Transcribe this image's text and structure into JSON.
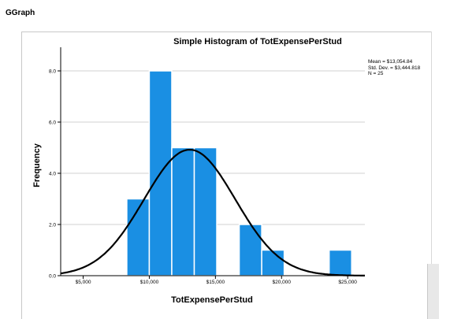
{
  "window": {
    "title": "GGraph"
  },
  "chart_data": {
    "type": "bar",
    "title": "Simple Histogram of TotExpensePerStud",
    "xlabel": "TotExpensePerStud",
    "ylabel": "Frequency",
    "bin_width": 1700,
    "bins": [
      {
        "start": 8300,
        "value": 3
      },
      {
        "start": 10000,
        "value": 8
      },
      {
        "start": 11700,
        "value": 5
      },
      {
        "start": 13400,
        "value": 5
      },
      {
        "start": 15100,
        "value": 0
      },
      {
        "start": 16800,
        "value": 2
      },
      {
        "start": 18500,
        "value": 1
      },
      {
        "start": 20200,
        "value": 0
      },
      {
        "start": 21900,
        "value": 0
      },
      {
        "start": 23600,
        "value": 1
      }
    ],
    "xlim": [
      3300,
      26300
    ],
    "ylim": [
      0,
      9
    ],
    "x_ticks": [
      5000,
      10000,
      15000,
      20000,
      25000
    ],
    "x_tick_labels": [
      "$5,000",
      "$10,000",
      "$15,000",
      "$20,000",
      "$25,000"
    ],
    "y_ticks": [
      0,
      2,
      4,
      6,
      8
    ],
    "y_tick_labels": [
      "0.0",
      "2.0",
      "4.0",
      "6.0",
      "8.0"
    ],
    "grid": true,
    "normal_curve": {
      "mean": 13054.84,
      "std": 3444.818,
      "n": 25
    },
    "stats": {
      "mean_label": "Mean = $13,054.84",
      "std_label": "Std. Dev. = $3,444.818",
      "n_label": "N = 25"
    },
    "colors": {
      "bar": "#1a8fe3",
      "bar_edge": "#ffffff",
      "curve": "#000000",
      "grid": "#d0d0d0"
    }
  }
}
